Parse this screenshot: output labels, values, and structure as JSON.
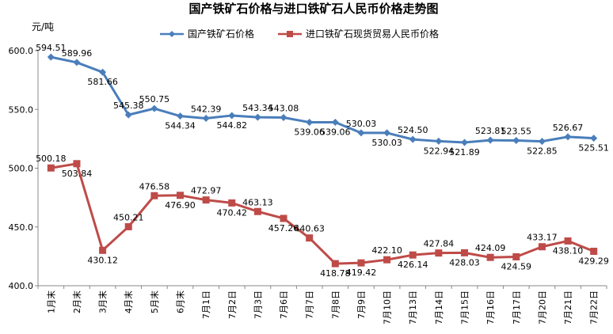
{
  "chart_data": {
    "type": "line",
    "title": "国产铁矿石价格与进口铁矿石人民币价格走势图",
    "ylabel": "元/吨",
    "xlabel": "",
    "ylim": [
      400,
      600
    ],
    "yticks": [
      "400.0",
      "450.0",
      "500.0",
      "550.0",
      "600.0"
    ],
    "grid": false,
    "legend_position": "top",
    "categories": [
      "1月末",
      "2月末",
      "3月末",
      "4月末",
      "5月末",
      "6月末",
      "7月1日",
      "7月2日",
      "7月3日",
      "7月6日",
      "7月7日",
      "7月8日",
      "7月9日",
      "7月10日",
      "7月13日",
      "7月14日",
      "7月15日",
      "7月16日",
      "7月17日",
      "7月20日",
      "7月21日",
      "7月22日"
    ],
    "series": [
      {
        "name": "国产铁矿石价格",
        "color": "#4A7EBB",
        "marker": "diamond",
        "values": [
          594.51,
          589.96,
          581.66,
          545.38,
          550.75,
          544.34,
          542.39,
          544.82,
          543.34,
          543.08,
          539.06,
          539.06,
          530.03,
          530.03,
          524.5,
          522.94,
          521.89,
          523.81,
          523.55,
          522.85,
          526.67,
          525.51
        ],
        "labels": [
          "594.51",
          "589.96",
          "581.66",
          "545.38",
          "550.75",
          "544.34",
          "542.39",
          "544.82",
          "543.34",
          "543.08",
          "539.06",
          "539.06",
          "530.03",
          "530.03",
          "524.50",
          "522.94",
          "521.89",
          "523.81",
          "523.55",
          "522.85",
          "526.67",
          "525.51"
        ]
      },
      {
        "name": "进口铁矿石现货贸易人民币价格",
        "color": "#BE4B48",
        "marker": "square",
        "values": [
          500.18,
          503.84,
          430.12,
          450.21,
          476.58,
          476.9,
          472.97,
          470.42,
          463.13,
          457.26,
          440.63,
          418.78,
          419.42,
          422.1,
          426.14,
          427.84,
          428.03,
          424.09,
          424.59,
          433.17,
          438.1,
          429.29
        ],
        "labels": [
          "500.18",
          "503.84",
          "430.12",
          "450.21",
          "476.58",
          "476.90",
          "472.97",
          "470.42",
          "463.13",
          "457.26",
          "440.63",
          "418.78",
          "419.42",
          "422.10",
          "426.14",
          "427.84",
          "428.03",
          "424.09",
          "424.59",
          "433.17",
          "438.10",
          "429.29"
        ]
      }
    ]
  }
}
